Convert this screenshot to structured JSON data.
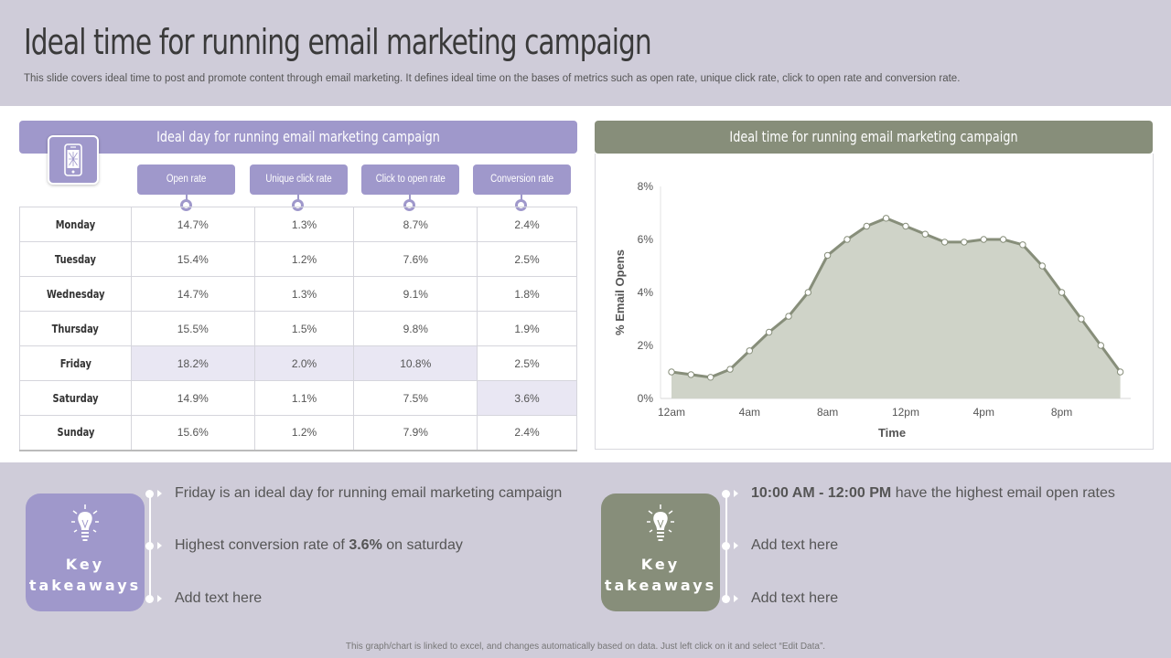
{
  "header": {
    "title": "Ideal time for running email marketing campaign",
    "subtitle": "This slide covers ideal time to post and promote content through email marketing. It defines ideal time on the bases of metrics such as open rate, unique click rate, click to open rate and conversion rate."
  },
  "left_panel": {
    "title": "Ideal day for running email marketing campaign",
    "icon": "mobile-phone-icon",
    "columns": [
      "Open rate",
      "Unique click rate",
      "Click to open rate",
      "Conversion rate"
    ],
    "rows": [
      {
        "day": "Monday",
        "values": [
          "14.7%",
          "1.3%",
          "8.7%",
          "2.4%"
        ]
      },
      {
        "day": "Tuesday",
        "values": [
          "15.4%",
          "1.2%",
          "7.6%",
          "2.5%"
        ]
      },
      {
        "day": "Wednesday",
        "values": [
          "14.7%",
          "1.3%",
          "9.1%",
          "1.8%"
        ]
      },
      {
        "day": "Thursday",
        "values": [
          "15.5%",
          "1.5%",
          "9.8%",
          "1.9%"
        ]
      },
      {
        "day": "Friday",
        "values": [
          "18.2%",
          "2.0%",
          "10.8%",
          "2.5%"
        ]
      },
      {
        "day": "Saturday",
        "values": [
          "14.9%",
          "1.1%",
          "7.5%",
          "3.6%"
        ]
      },
      {
        "day": "Sunday",
        "values": [
          "15.6%",
          "1.2%",
          "7.9%",
          "2.4%"
        ]
      }
    ],
    "highlight_color": "#e9e7f3"
  },
  "right_panel": {
    "title": "Ideal time for running email marketing campaign"
  },
  "chart_data": {
    "type": "area",
    "title": "Ideal time for running email marketing campaign",
    "xlabel": "Time",
    "ylabel": "% Email Opens",
    "x_tick_labels": [
      "12am",
      "4am",
      "8am",
      "12pm",
      "4pm",
      "8pm"
    ],
    "y_tick_labels": [
      "0%",
      "2%",
      "4%",
      "6%",
      "8%"
    ],
    "ylim": [
      0,
      8
    ],
    "x_hours": [
      0,
      1,
      2,
      3,
      4,
      5,
      6,
      7,
      8,
      9,
      10,
      11,
      12,
      13,
      14,
      15,
      16,
      17,
      18,
      19,
      20,
      21,
      22,
      23
    ],
    "series": [
      {
        "values": [
          1.0,
          0.9,
          0.8,
          1.1,
          1.8,
          2.5,
          3.1,
          4.0,
          5.4,
          6.0,
          6.5,
          6.8,
          6.5,
          6.2,
          5.9,
          5.9,
          6.0,
          6.0,
          5.8,
          5.0,
          4.0,
          3.0,
          2.0,
          1.0
        ]
      }
    ],
    "grid": false,
    "fill_color": "#cfd3c8",
    "line_color": "#878e7a"
  },
  "takeaways_left": {
    "label_line1": "Key",
    "label_line2": "takeaways",
    "icon": "lightbulb-icon",
    "items": [
      {
        "pre": "Friday is an ideal day for running  email marketing campaign",
        "bold": "",
        "post": ""
      },
      {
        "pre": "Highest conversion rate of ",
        "bold": "3.6%",
        "post": " on saturday"
      },
      {
        "pre": "Add text here",
        "bold": "",
        "post": ""
      }
    ]
  },
  "takeaways_right": {
    "label_line1": "Key",
    "label_line2": "takeaways",
    "icon": "lightbulb-icon",
    "items": [
      {
        "pre": "",
        "bold": "10:00 AM - 12:00 PM",
        "post": " have the highest email open rates"
      },
      {
        "pre": "Add text here",
        "bold": "",
        "post": ""
      },
      {
        "pre": "Add text here",
        "bold": "",
        "post": ""
      }
    ]
  },
  "footer": "This graph/chart is linked to excel, and changes automatically based on data. Just left click on it and select “Edit Data”.",
  "colors": {
    "purple": "#9f98cb",
    "green": "#878e7a",
    "band": "#cfccd9"
  }
}
